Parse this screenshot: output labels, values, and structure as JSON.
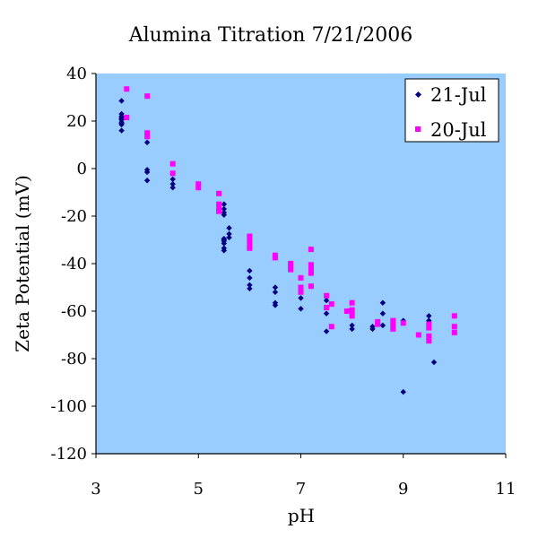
{
  "chart_data": {
    "type": "scatter",
    "title": "Alumina Titration 7/21/2006",
    "xlabel": "pH",
    "ylabel": "Zeta Potential (mV)",
    "xlim": [
      3,
      11
    ],
    "ylim": [
      -120,
      40
    ],
    "xticks": [
      3,
      5,
      7,
      9,
      11
    ],
    "yticks": [
      40,
      20,
      0,
      -20,
      -40,
      -60,
      -80,
      -100,
      -120
    ],
    "grid": false,
    "legend_position": "top-right",
    "plot_background": "#99ccff",
    "series": [
      {
        "name": "21-Jul",
        "marker": "diamond",
        "color": "#000080",
        "points": [
          [
            3.5,
            28.5
          ],
          [
            3.5,
            23.0
          ],
          [
            3.5,
            22.0
          ],
          [
            3.5,
            21.5
          ],
          [
            3.5,
            21.0
          ],
          [
            3.5,
            20.5
          ],
          [
            3.5,
            19.5
          ],
          [
            3.5,
            19.0
          ],
          [
            3.5,
            18.5
          ],
          [
            3.5,
            16.0
          ],
          [
            4.0,
            11.0
          ],
          [
            4.0,
            -0.5
          ],
          [
            4.0,
            -1.5
          ],
          [
            4.0,
            -5.0
          ],
          [
            4.5,
            -4.5
          ],
          [
            4.5,
            -6.5
          ],
          [
            4.5,
            -8.0
          ],
          [
            5.5,
            -15.0
          ],
          [
            5.5,
            -17.0
          ],
          [
            5.5,
            -18.5
          ],
          [
            5.5,
            -19.5
          ],
          [
            5.5,
            -29.5
          ],
          [
            5.5,
            -30.0
          ],
          [
            5.5,
            -30.5
          ],
          [
            5.5,
            -31.5
          ],
          [
            5.5,
            -33.5
          ],
          [
            5.5,
            -34.5
          ],
          [
            5.6,
            -25.0
          ],
          [
            5.6,
            -27.5
          ],
          [
            5.6,
            -29.0
          ],
          [
            6.0,
            -43.0
          ],
          [
            6.0,
            -46.0
          ],
          [
            6.0,
            -49.0
          ],
          [
            6.0,
            -50.5
          ],
          [
            6.5,
            -50.0
          ],
          [
            6.5,
            -52.0
          ],
          [
            6.5,
            -56.5
          ],
          [
            6.5,
            -57.5
          ],
          [
            7.0,
            -50.5
          ],
          [
            7.0,
            -54.5
          ],
          [
            7.0,
            -59.0
          ],
          [
            7.5,
            -55.5
          ],
          [
            7.5,
            -61.0
          ],
          [
            7.5,
            -68.5
          ],
          [
            8.0,
            -66.0
          ],
          [
            8.0,
            -67.5
          ],
          [
            8.4,
            -66.5
          ],
          [
            8.4,
            -67.5
          ],
          [
            8.6,
            -56.5
          ],
          [
            8.6,
            -61.0
          ],
          [
            8.6,
            -66.0
          ],
          [
            9.0,
            -64.0
          ],
          [
            9.0,
            -94.0
          ],
          [
            9.5,
            -62.0
          ],
          [
            9.5,
            -64.0
          ],
          [
            9.6,
            -81.5
          ]
        ]
      },
      {
        "name": "20-Jul",
        "marker": "square",
        "color": "#ff00ff",
        "points": [
          [
            3.6,
            33.5
          ],
          [
            3.6,
            21.5
          ],
          [
            4.0,
            30.5
          ],
          [
            4.0,
            15.0
          ],
          [
            4.0,
            13.5
          ],
          [
            4.5,
            2.0
          ],
          [
            4.5,
            -2.0
          ],
          [
            5.0,
            -6.5
          ],
          [
            5.0,
            -8.0
          ],
          [
            5.4,
            -10.5
          ],
          [
            5.4,
            -15.0
          ],
          [
            5.4,
            -16.5
          ],
          [
            5.4,
            -18.0
          ],
          [
            6.0,
            -28.5
          ],
          [
            6.0,
            -30.5
          ],
          [
            6.0,
            -32.0
          ],
          [
            6.0,
            -33.5
          ],
          [
            6.5,
            -36.5
          ],
          [
            6.5,
            -37.5
          ],
          [
            6.8,
            -40.0
          ],
          [
            6.8,
            -41.5
          ],
          [
            6.8,
            -42.5
          ],
          [
            7.0,
            -46.0
          ],
          [
            7.0,
            -50.0
          ],
          [
            7.0,
            -52.0
          ],
          [
            7.2,
            -34.0
          ],
          [
            7.2,
            -40.5
          ],
          [
            7.2,
            -42.5
          ],
          [
            7.2,
            -44.0
          ],
          [
            7.2,
            -49.5
          ],
          [
            7.5,
            -53.5
          ],
          [
            7.5,
            -58.5
          ],
          [
            7.6,
            -57.0
          ],
          [
            7.6,
            -66.5
          ],
          [
            7.9,
            -60.0
          ],
          [
            8.0,
            -56.5
          ],
          [
            8.0,
            -59.5
          ],
          [
            8.0,
            -61.0
          ],
          [
            8.0,
            -62.0
          ],
          [
            8.5,
            -64.5
          ],
          [
            8.5,
            -65.5
          ],
          [
            8.8,
            -64.0
          ],
          [
            8.8,
            -66.0
          ],
          [
            8.8,
            -67.5
          ],
          [
            9.0,
            -65.0
          ],
          [
            9.3,
            -70.0
          ],
          [
            9.5,
            -65.5
          ],
          [
            9.5,
            -67.0
          ],
          [
            9.5,
            -70.5
          ],
          [
            9.5,
            -72.5
          ],
          [
            10.0,
            -62.0
          ],
          [
            10.0,
            -66.5
          ],
          [
            10.0,
            -69.0
          ]
        ]
      }
    ]
  }
}
